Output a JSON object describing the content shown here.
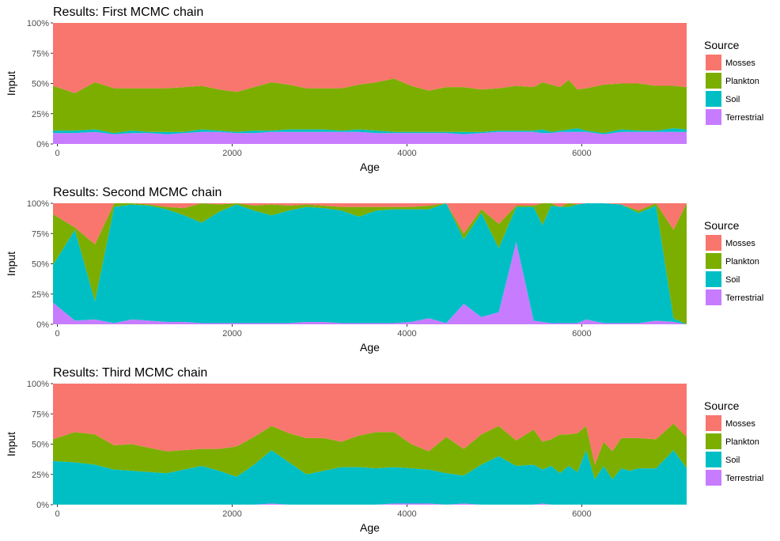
{
  "chart_data": [
    {
      "type": "area",
      "title": "Results: First MCMC chain",
      "xlabel": "Age",
      "ylabel": "Input",
      "xlim": [
        -50,
        7200
      ],
      "ylim": [
        0,
        1
      ],
      "x_ticks": [
        0,
        2000,
        4000,
        6000
      ],
      "y_ticks": [
        "0%",
        "25%",
        "50%",
        "75%",
        "100%"
      ],
      "legend_title": "Source",
      "stacking": "fill",
      "x": [
        -50,
        200,
        430,
        650,
        850,
        1050,
        1250,
        1450,
        1650,
        1850,
        2050,
        2250,
        2450,
        2650,
        2850,
        3050,
        3250,
        3450,
        3650,
        3850,
        4050,
        4250,
        4450,
        4650,
        4850,
        5050,
        5250,
        5450,
        5550,
        5650,
        5750,
        5850,
        5950,
        6050,
        6250,
        6450,
        6650,
        6850,
        7050,
        7200
      ],
      "series": [
        {
          "name": "Terrestrial",
          "color": "#C77CFF",
          "values": [
            0.09,
            0.09,
            0.1,
            0.08,
            0.09,
            0.09,
            0.08,
            0.09,
            0.1,
            0.1,
            0.09,
            0.09,
            0.1,
            0.1,
            0.1,
            0.1,
            0.1,
            0.1,
            0.09,
            0.09,
            0.09,
            0.09,
            0.09,
            0.08,
            0.09,
            0.1,
            0.1,
            0.1,
            0.09,
            0.09,
            0.1,
            0.1,
            0.1,
            0.1,
            0.08,
            0.1,
            0.1,
            0.1,
            0.1,
            0.1
          ]
        },
        {
          "name": "Soil",
          "color": "#00BFC4",
          "values": [
            0.02,
            0.02,
            0.02,
            0.01,
            0.02,
            0.01,
            0.02,
            0.01,
            0.02,
            0.01,
            0.01,
            0.02,
            0.01,
            0.02,
            0.02,
            0.02,
            0.01,
            0.02,
            0.02,
            0.01,
            0.01,
            0.01,
            0.01,
            0.02,
            0.01,
            0.01,
            0.01,
            0.01,
            0.03,
            0.01,
            0.01,
            0.02,
            0.03,
            0.01,
            0.01,
            0.02,
            0.01,
            0.01,
            0.03,
            0.02
          ]
        },
        {
          "name": "Plankton",
          "color": "#7CAE00",
          "values": [
            0.37,
            0.31,
            0.39,
            0.37,
            0.35,
            0.36,
            0.36,
            0.37,
            0.36,
            0.34,
            0.33,
            0.36,
            0.4,
            0.37,
            0.34,
            0.34,
            0.35,
            0.37,
            0.4,
            0.44,
            0.38,
            0.34,
            0.37,
            0.37,
            0.35,
            0.35,
            0.37,
            0.36,
            0.39,
            0.39,
            0.36,
            0.41,
            0.32,
            0.35,
            0.4,
            0.38,
            0.39,
            0.37,
            0.35,
            0.35
          ]
        },
        {
          "name": "Mosses",
          "color": "#F8766D",
          "values": [
            0.52,
            0.58,
            0.49,
            0.54,
            0.54,
            0.54,
            0.54,
            0.53,
            0.52,
            0.55,
            0.57,
            0.53,
            0.49,
            0.51,
            0.54,
            0.54,
            0.54,
            0.51,
            0.49,
            0.46,
            0.52,
            0.56,
            0.53,
            0.53,
            0.55,
            0.54,
            0.52,
            0.53,
            0.49,
            0.51,
            0.53,
            0.47,
            0.55,
            0.54,
            0.51,
            0.5,
            0.5,
            0.52,
            0.52,
            0.53
          ]
        }
      ]
    },
    {
      "type": "area",
      "title": "Results: Second MCMC chain",
      "xlabel": "Age",
      "ylabel": "Input",
      "xlim": [
        -50,
        7200
      ],
      "ylim": [
        0,
        1
      ],
      "x_ticks": [
        0,
        2000,
        4000,
        6000
      ],
      "y_ticks": [
        "0%",
        "25%",
        "50%",
        "75%",
        "100%"
      ],
      "legend_title": "Source",
      "stacking": "fill",
      "x": [
        -50,
        200,
        430,
        650,
        850,
        1050,
        1250,
        1450,
        1650,
        1850,
        2050,
        2250,
        2450,
        2650,
        2850,
        3050,
        3250,
        3450,
        3650,
        3850,
        4050,
        4250,
        4450,
        4650,
        4850,
        5050,
        5250,
        5450,
        5550,
        5650,
        5750,
        5850,
        5950,
        6050,
        6250,
        6450,
        6650,
        6850,
        7050,
        7200
      ],
      "series": [
        {
          "name": "Terrestrial",
          "color": "#C77CFF",
          "values": [
            0.18,
            0.03,
            0.04,
            0.01,
            0.04,
            0.03,
            0.02,
            0.02,
            0.01,
            0.01,
            0.01,
            0.01,
            0.01,
            0.01,
            0.02,
            0.02,
            0.01,
            0.01,
            0.01,
            0.01,
            0.02,
            0.05,
            0.01,
            0.17,
            0.06,
            0.1,
            0.68,
            0.03,
            0.02,
            0.01,
            0.01,
            0.01,
            0.01,
            0.04,
            0.01,
            0.01,
            0.01,
            0.03,
            0.02,
            0.0
          ]
        },
        {
          "name": "Soil",
          "color": "#00BFC4",
          "values": [
            0.31,
            0.75,
            0.15,
            0.96,
            0.95,
            0.95,
            0.93,
            0.88,
            0.83,
            0.92,
            0.98,
            0.93,
            0.89,
            0.93,
            0.95,
            0.94,
            0.93,
            0.88,
            0.93,
            0.94,
            0.93,
            0.9,
            0.99,
            0.53,
            0.86,
            0.53,
            0.29,
            0.94,
            0.8,
            0.97,
            0.96,
            0.96,
            0.98,
            0.96,
            0.99,
            0.98,
            0.91,
            0.95,
            0.03,
            0.0
          ]
        },
        {
          "name": "Plankton",
          "color": "#7CAE00",
          "values": [
            0.42,
            0.02,
            0.47,
            0.03,
            0.01,
            0.01,
            0.02,
            0.06,
            0.16,
            0.06,
            0.01,
            0.04,
            0.09,
            0.04,
            0.02,
            0.02,
            0.03,
            0.08,
            0.03,
            0.02,
            0.02,
            0.03,
            0.0,
            0.05,
            0.03,
            0.2,
            0.01,
            0.01,
            0.18,
            0.02,
            0.0,
            0.03,
            0.0,
            0.0,
            0.0,
            0.0,
            0.02,
            0.02,
            0.73,
            1.0
          ]
        },
        {
          "name": "Mosses",
          "color": "#F8766D",
          "values": [
            0.09,
            0.2,
            0.34,
            0.0,
            0.0,
            0.01,
            0.03,
            0.04,
            0.0,
            0.01,
            0.0,
            0.02,
            0.01,
            0.02,
            0.01,
            0.02,
            0.03,
            0.03,
            0.03,
            0.03,
            0.03,
            0.02,
            0.0,
            0.25,
            0.05,
            0.17,
            0.02,
            0.02,
            0.0,
            0.0,
            0.03,
            0.0,
            0.01,
            0.0,
            0.0,
            0.01,
            0.06,
            0.0,
            0.22,
            0.0
          ]
        }
      ]
    },
    {
      "type": "area",
      "title": "Results: Third MCMC chain",
      "xlabel": "Age",
      "ylabel": "Input",
      "xlim": [
        -50,
        7200
      ],
      "ylim": [
        0,
        1
      ],
      "x_ticks": [
        0,
        2000,
        4000,
        6000
      ],
      "y_ticks": [
        "0%",
        "25%",
        "50%",
        "75%",
        "100%"
      ],
      "legend_title": "Source",
      "stacking": "fill",
      "x": [
        -50,
        200,
        430,
        650,
        850,
        1050,
        1250,
        1450,
        1650,
        1850,
        2050,
        2250,
        2450,
        2650,
        2850,
        3050,
        3250,
        3450,
        3650,
        3850,
        4050,
        4250,
        4450,
        4650,
        4850,
        5050,
        5250,
        5450,
        5550,
        5650,
        5750,
        5850,
        5950,
        6050,
        6150,
        6250,
        6350,
        6450,
        6550,
        6650,
        6850,
        7050,
        7200
      ],
      "series": [
        {
          "name": "Terrestrial",
          "color": "#C77CFF",
          "values": [
            0.0,
            0.0,
            0.0,
            0.0,
            0.0,
            0.0,
            0.0,
            0.0,
            0.0,
            0.0,
            0.0,
            0.0,
            0.01,
            0.0,
            0.0,
            0.0,
            0.0,
            0.0,
            0.0,
            0.01,
            0.01,
            0.01,
            0.0,
            0.01,
            0.0,
            0.0,
            0.0,
            0.0,
            0.01,
            0.0,
            0.0,
            0.0,
            0.0,
            0.0,
            0.0,
            0.0,
            0.0,
            0.0,
            0.0,
            0.0,
            0.0,
            0.0,
            0.0
          ]
        },
        {
          "name": "Soil",
          "color": "#00BFC4",
          "values": [
            0.36,
            0.35,
            0.33,
            0.29,
            0.28,
            0.27,
            0.26,
            0.29,
            0.32,
            0.28,
            0.23,
            0.33,
            0.44,
            0.35,
            0.25,
            0.28,
            0.31,
            0.31,
            0.3,
            0.3,
            0.29,
            0.28,
            0.26,
            0.23,
            0.33,
            0.4,
            0.32,
            0.33,
            0.28,
            0.32,
            0.26,
            0.32,
            0.27,
            0.45,
            0.21,
            0.32,
            0.21,
            0.3,
            0.28,
            0.3,
            0.3,
            0.45,
            0.3
          ]
        },
        {
          "name": "Plankton",
          "color": "#7CAE00",
          "values": [
            0.18,
            0.25,
            0.25,
            0.2,
            0.22,
            0.2,
            0.18,
            0.16,
            0.14,
            0.18,
            0.25,
            0.23,
            0.2,
            0.24,
            0.3,
            0.27,
            0.21,
            0.26,
            0.3,
            0.29,
            0.2,
            0.15,
            0.3,
            0.22,
            0.25,
            0.25,
            0.21,
            0.29,
            0.23,
            0.22,
            0.32,
            0.26,
            0.32,
            0.2,
            0.12,
            0.2,
            0.23,
            0.25,
            0.27,
            0.25,
            0.24,
            0.22,
            0.26
          ]
        },
        {
          "name": "Mosses",
          "color": "#F8766D",
          "values": [
            0.46,
            0.4,
            0.42,
            0.51,
            0.5,
            0.53,
            0.56,
            0.55,
            0.54,
            0.54,
            0.52,
            0.44,
            0.35,
            0.41,
            0.45,
            0.45,
            0.48,
            0.43,
            0.4,
            0.4,
            0.5,
            0.56,
            0.44,
            0.54,
            0.42,
            0.35,
            0.47,
            0.38,
            0.48,
            0.46,
            0.42,
            0.42,
            0.41,
            0.35,
            0.67,
            0.48,
            0.56,
            0.45,
            0.45,
            0.45,
            0.46,
            0.33,
            0.44
          ]
        }
      ]
    }
  ]
}
